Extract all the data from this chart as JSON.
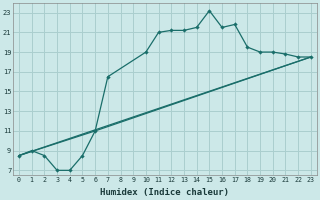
{
  "xlabel": "Humidex (Indice chaleur)",
  "bg_color": "#cce8e8",
  "grid_color": "#aacece",
  "line_color": "#1a6e6a",
  "xlim": [
    -0.5,
    23.5
  ],
  "ylim": [
    6.5,
    24.0
  ],
  "xticks": [
    0,
    1,
    2,
    3,
    4,
    5,
    6,
    7,
    8,
    9,
    10,
    11,
    12,
    13,
    14,
    15,
    16,
    17,
    18,
    19,
    20,
    21,
    22,
    23
  ],
  "yticks": [
    7,
    9,
    11,
    13,
    15,
    17,
    19,
    21,
    23
  ],
  "series1_x": [
    0,
    1,
    2,
    3,
    4,
    5,
    6,
    7,
    10,
    11,
    12,
    13,
    14,
    15,
    16,
    17,
    18,
    19,
    20,
    21,
    22,
    23
  ],
  "series1_y": [
    8.5,
    9.0,
    8.5,
    7.0,
    7.0,
    8.5,
    11.0,
    16.5,
    19.0,
    21.0,
    21.2,
    21.2,
    21.5,
    23.2,
    21.5,
    21.8,
    19.5,
    19.0,
    19.0,
    18.8,
    18.5,
    18.5
  ],
  "series2_x": [
    0,
    23
  ],
  "series2_y": [
    8.5,
    18.5
  ],
  "series3_x": [
    0,
    6,
    23
  ],
  "series3_y": [
    8.5,
    11.0,
    18.5
  ]
}
